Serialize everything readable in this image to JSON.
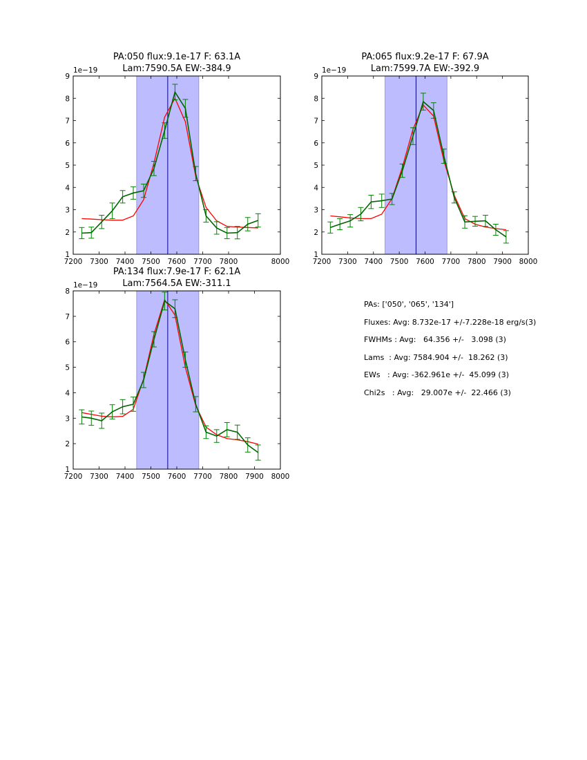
{
  "chart_data": [
    {
      "type": "line",
      "title_line1": "PA:050 flux:9.1e-17 F: 63.1A",
      "title_line2": "Lam:7590.5A EW:-384.9",
      "multiplier": "1e−19",
      "xlim": [
        7200,
        8000
      ],
      "ylim": [
        1,
        9
      ],
      "xticks": [
        "7200",
        "7300",
        "7400",
        "7500",
        "7600",
        "7700",
        "7800",
        "8000"
      ],
      "xtick_values": [
        7200,
        7300,
        7400,
        7500,
        7600,
        7700,
        7800,
        8000
      ],
      "yticks": [
        "1",
        "2",
        "3",
        "4",
        "5",
        "6",
        "7",
        "8",
        "9"
      ],
      "ytick_values": [
        1,
        2,
        3,
        4,
        5,
        6,
        7,
        8,
        9
      ],
      "band": [
        7445,
        7685
      ],
      "vline": 7565,
      "series": [
        {
          "x": [
            7233,
            7270,
            7310,
            7351,
            7391,
            7432,
            7472,
            7512,
            7553,
            7593,
            7633,
            7673,
            7713,
            7754,
            7794,
            7834,
            7874,
            7914
          ],
          "values": [
            1.95,
            1.97,
            2.45,
            2.95,
            3.58,
            3.75,
            3.85,
            4.85,
            6.55,
            8.28,
            7.55,
            4.62,
            2.72,
            2.18,
            1.95,
            1.97,
            2.35,
            2.52
          ],
          "errors": [
            0.25,
            0.25,
            0.3,
            0.35,
            0.28,
            0.28,
            0.3,
            0.32,
            0.35,
            0.35,
            0.4,
            0.32,
            0.28,
            0.28,
            0.25,
            0.28,
            0.3,
            0.3
          ]
        },
        {
          "x": [
            7233,
            7270,
            7310,
            7351,
            7391,
            7432,
            7472,
            7512,
            7553,
            7593,
            7633,
            7673,
            7713,
            7754,
            7794,
            7834,
            7874,
            7914
          ],
          "values": [
            2.6,
            2.58,
            2.55,
            2.53,
            2.53,
            2.72,
            3.45,
            5.1,
            7.15,
            8.0,
            6.95,
            4.5,
            3.1,
            2.5,
            2.25,
            2.22,
            2.2,
            2.18
          ]
        }
      ]
    },
    {
      "type": "line",
      "title_line1": "PA:065 flux:9.2e-17 F: 67.9A",
      "title_line2": "Lam:7599.7A EW:-392.9",
      "multiplier": "1e−19",
      "xlim": [
        7200,
        8000
      ],
      "ylim": [
        1,
        9
      ],
      "xticks": [
        "7200",
        "7300",
        "7400",
        "7500",
        "7600",
        "7700",
        "7800",
        "7900",
        "8000"
      ],
      "xtick_values": [
        7200,
        7300,
        7400,
        7500,
        7600,
        7700,
        7800,
        7900,
        8000
      ],
      "yticks": [
        "1",
        "2",
        "3",
        "4",
        "5",
        "6",
        "7",
        "8",
        "9"
      ],
      "ytick_values": [
        1,
        2,
        3,
        4,
        5,
        6,
        7,
        8,
        9
      ],
      "band": [
        7445,
        7685
      ],
      "vline": 7565,
      "series": [
        {
          "x": [
            7233,
            7270,
            7310,
            7351,
            7391,
            7432,
            7472,
            7512,
            7553,
            7593,
            7633,
            7673,
            7713,
            7754,
            7794,
            7834,
            7874,
            7914
          ],
          "values": [
            2.2,
            2.35,
            2.5,
            2.8,
            3.35,
            3.4,
            3.48,
            4.75,
            6.3,
            7.85,
            7.45,
            5.4,
            3.55,
            2.45,
            2.48,
            2.5,
            2.1,
            1.78
          ],
          "errors": [
            0.25,
            0.25,
            0.28,
            0.3,
            0.3,
            0.3,
            0.25,
            0.3,
            0.38,
            0.38,
            0.35,
            0.32,
            0.25,
            0.28,
            0.22,
            0.25,
            0.25,
            0.28
          ]
        },
        {
          "x": [
            7233,
            7270,
            7310,
            7351,
            7391,
            7432,
            7472,
            7512,
            7553,
            7593,
            7633,
            7673,
            7713,
            7754,
            7794,
            7834,
            7874,
            7914
          ],
          "values": [
            2.72,
            2.68,
            2.63,
            2.6,
            2.6,
            2.8,
            3.5,
            4.9,
            6.6,
            7.7,
            7.2,
            5.2,
            3.65,
            2.6,
            2.35,
            2.22,
            2.15,
            2.1
          ]
        }
      ]
    },
    {
      "type": "line",
      "title_line1": "PA:134 flux:7.9e-17 F: 62.1A",
      "title_line2": "Lam:7564.5A EW:-311.1",
      "multiplier": "1e−19",
      "xlim": [
        7200,
        8000
      ],
      "ylim": [
        1,
        8
      ],
      "xticks": [
        "7200",
        "7300",
        "7400",
        "7500",
        "7600",
        "7700",
        "7800",
        "7900",
        "8000"
      ],
      "xtick_values": [
        7200,
        7300,
        7400,
        7500,
        7600,
        7700,
        7800,
        7900,
        8000
      ],
      "yticks": [
        "1",
        "2",
        "3",
        "4",
        "5",
        "6",
        "7",
        "8"
      ],
      "ytick_values": [
        1,
        2,
        3,
        4,
        5,
        6,
        7,
        8
      ],
      "band": [
        7445,
        7685
      ],
      "vline": 7565,
      "series": [
        {
          "x": [
            7233,
            7270,
            7310,
            7351,
            7391,
            7432,
            7472,
            7512,
            7553,
            7593,
            7633,
            7673,
            7713,
            7754,
            7794,
            7834,
            7874,
            7914
          ],
          "values": [
            3.05,
            3.0,
            2.9,
            3.25,
            3.45,
            3.55,
            4.5,
            6.1,
            7.6,
            7.3,
            5.3,
            3.55,
            2.45,
            2.3,
            2.55,
            2.45,
            1.95,
            1.65
          ],
          "errors": [
            0.28,
            0.28,
            0.3,
            0.28,
            0.28,
            0.28,
            0.3,
            0.3,
            0.35,
            0.35,
            0.3,
            0.3,
            0.25,
            0.25,
            0.28,
            0.28,
            0.28,
            0.3
          ]
        },
        {
          "x": [
            7233,
            7270,
            7310,
            7351,
            7391,
            7432,
            7472,
            7512,
            7553,
            7593,
            7633,
            7673,
            7713,
            7754,
            7794,
            7834,
            7874,
            7914
          ],
          "values": [
            3.22,
            3.15,
            3.08,
            3.05,
            3.07,
            3.35,
            4.55,
            6.3,
            7.65,
            7.05,
            5.0,
            3.5,
            2.65,
            2.35,
            2.2,
            2.15,
            2.08,
            1.98
          ]
        }
      ]
    }
  ],
  "stats": [
    "PAs: ['050', '065', '134']",
    "Fluxes: Avg: 8.732e-17 +/-7.228e-18 erg/s(3)",
    "FWHMs : Avg:   64.356 +/-   3.098 (3)",
    "Lams  : Avg: 7584.904 +/-  18.262 (3)",
    "EWs   : Avg: -362.961e +/-  45.099 (3)",
    "Chi2s   : Avg:   29.007e +/-  22.466 (3)"
  ],
  "colors": {
    "band": "#bcbcff",
    "band_edge": "#8888c8",
    "vline": "#00008b",
    "data": "#006400",
    "errorbar": "#008000",
    "fit": "#ff0000"
  }
}
